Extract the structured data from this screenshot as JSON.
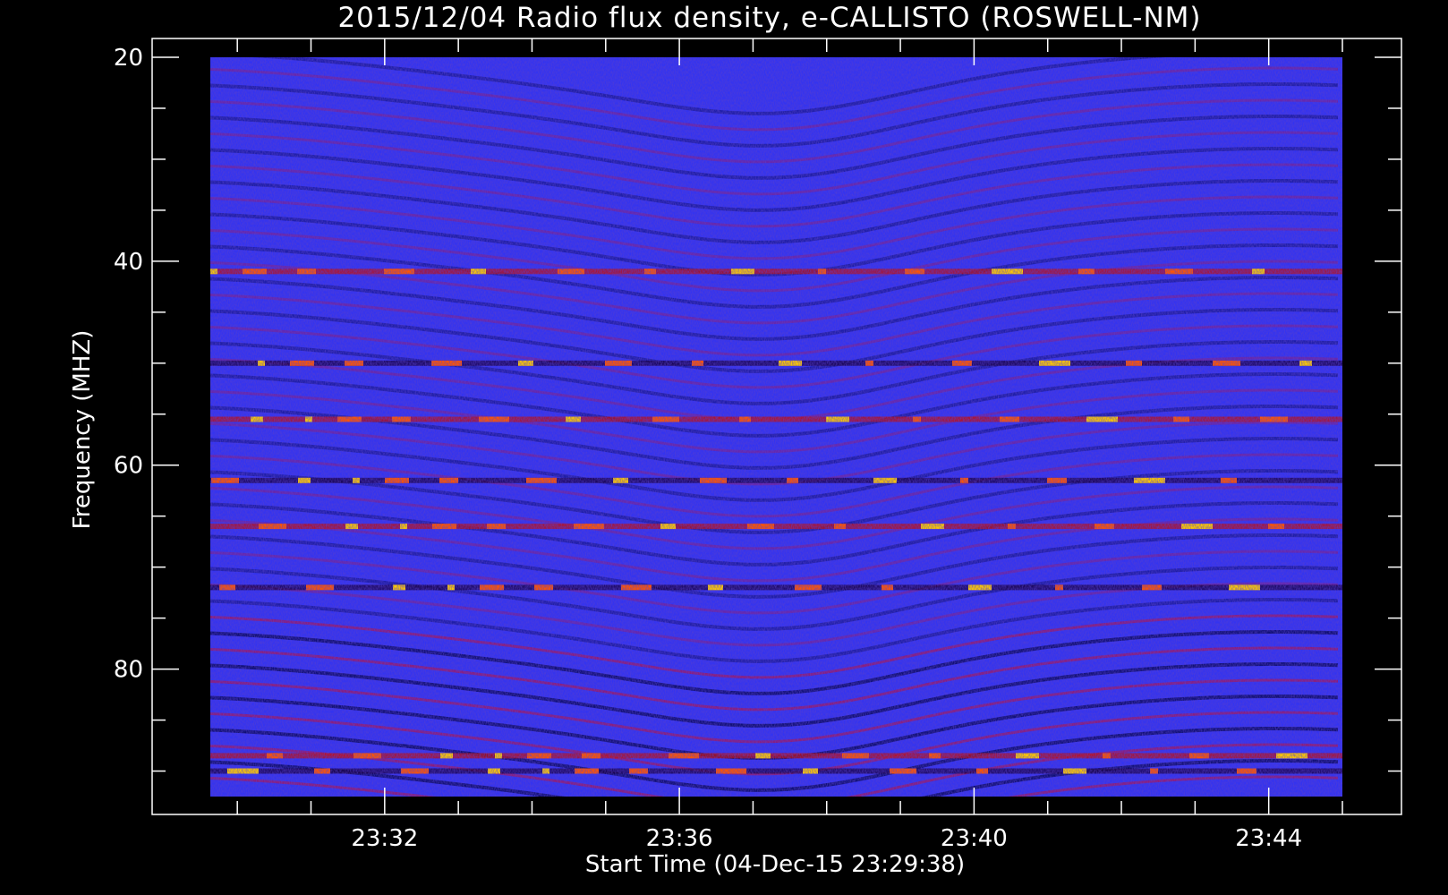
{
  "chart_data": {
    "type": "heatmap",
    "title": "2015/12/04  Radio flux density, e-CALLISTO (ROSWELL-NM)",
    "xlabel": "Start Time (04-Dec-15 23:29:38)",
    "ylabel": "Frequency (MHZ)",
    "x_range_minutes": [
      "23:29:38",
      "23:45:00"
    ],
    "y_range_mhz": [
      20,
      92.5
    ],
    "y_inverted": true,
    "x_ticks": [
      "23:32",
      "23:36",
      "23:40",
      "23:44"
    ],
    "y_ticks": [
      "20",
      "40",
      "60",
      "80"
    ],
    "y_minor_step_mhz": 5,
    "x_minor_step_minutes": 1,
    "colormap": [
      "#000000",
      "#1a0080",
      "#2a2aff",
      "#4444ff",
      "#8a1a8a",
      "#c01010",
      "#ff5500",
      "#ffcc00",
      "#ffff80"
    ],
    "background_color": "#3333f0",
    "strong_emission_bands_mhz": [
      41,
      50,
      55.5,
      61.5,
      66,
      72,
      88.5,
      90
    ]
  }
}
